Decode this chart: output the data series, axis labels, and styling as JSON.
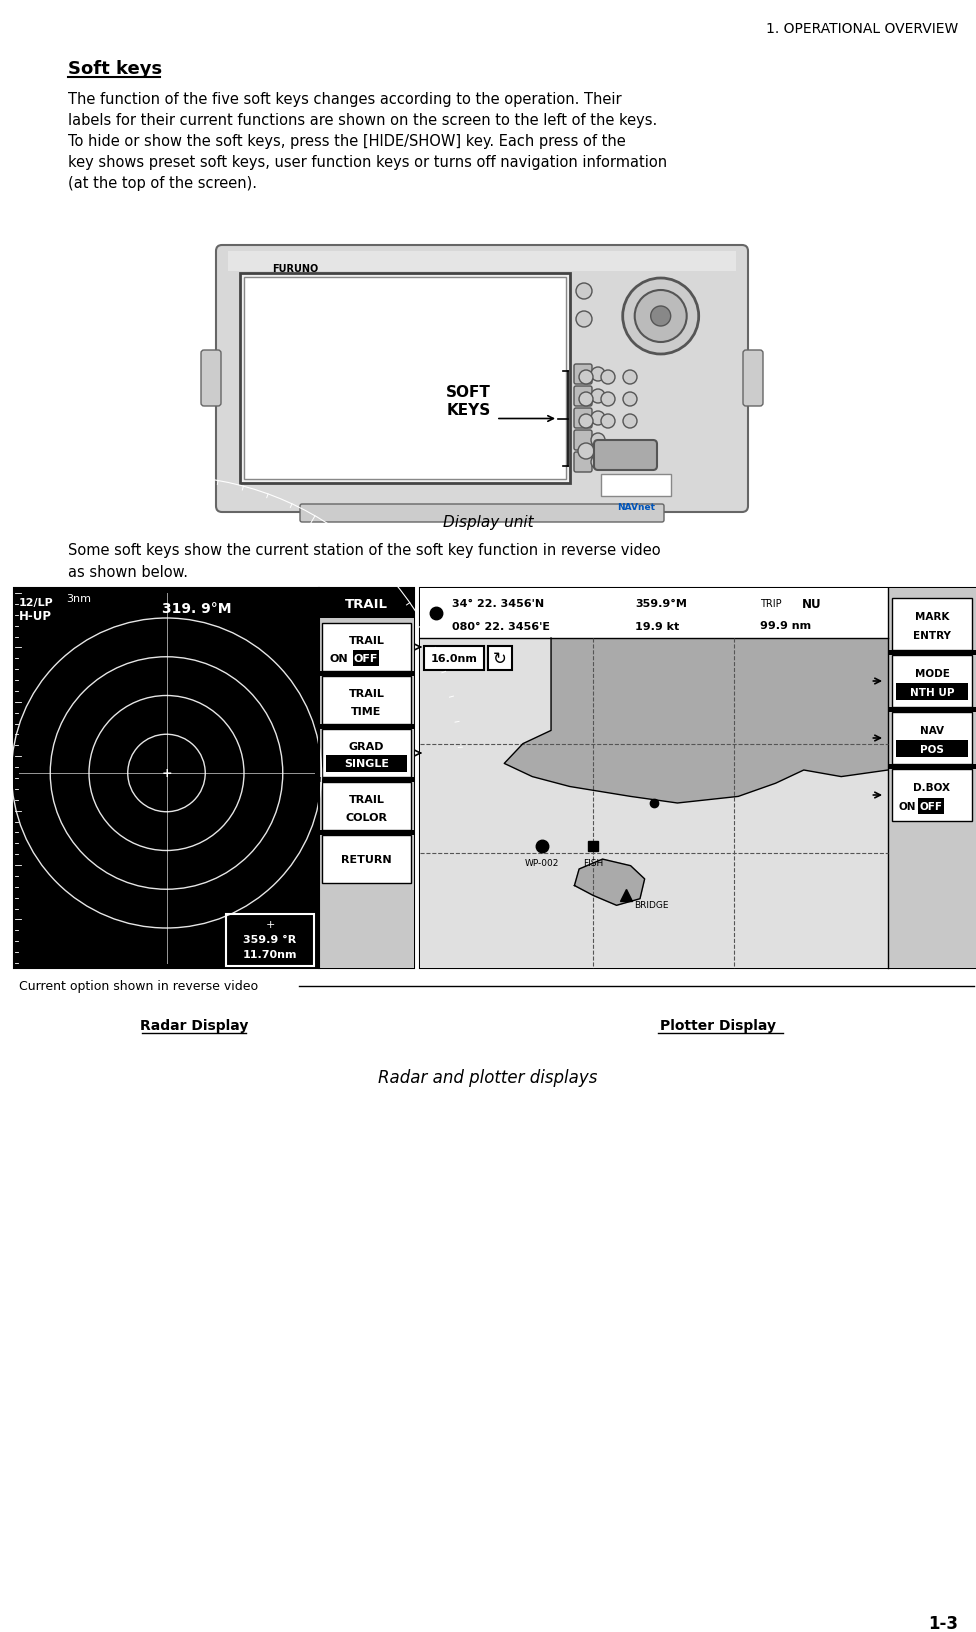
{
  "page_title": "1. OPERATIONAL OVERVIEW",
  "page_number": "1-3",
  "section_title": "Soft keys",
  "para1_lines": [
    "The function of the five soft keys changes according to the operation. Their",
    "labels for their current functions are shown on the screen to the left of the keys.",
    "To hide or show the soft keys, press the [HIDE/SHOW] key. Each press of the",
    "key shows preset soft keys, user function keys or turns off navigation information",
    "(at the top of the screen)."
  ],
  "softkeys_label": "SOFT\nKEYS",
  "display_unit_caption": "Display unit",
  "para2_lines": [
    "Some soft keys show the current station of the soft key function in reverse video",
    "as shown below."
  ],
  "radar_label": "Radar Display",
  "plotter_label": "Plotter Display",
  "figure_caption": "Radar and plotter displays",
  "current_option_label": "Current option shown in reverse video",
  "radar": {
    "range_label": "12/LP",
    "heading_label": "H-UP",
    "range_nm": "3nm",
    "bearing_label": "319. 9°M",
    "trail_header": "TRAIL",
    "sk_keys": [
      "TRAIL\nON OFF",
      "TRAIL\nTIME",
      "GRAD\nSINGLE",
      "TRAIL\nCOLOR",
      "RETURN"
    ],
    "sk_reverse": [
      true,
      false,
      true,
      false,
      false
    ],
    "sk_reverse_word": [
      "OFF",
      null,
      "SINGLE",
      null,
      null
    ],
    "bottom_plus": "+",
    "bottom_value": "359.9 °R",
    "bottom_dist": "11.70nm"
  },
  "plotter": {
    "lat": "34° 22. 3456'N",
    "lon": "080° 22. 3456'E",
    "bearing": "359.9°M",
    "speed": "19.9 kt",
    "trip_label": "TRIP",
    "nu_label": "NU",
    "nm_label": "99.9 nm",
    "range": "16.0nm",
    "sk_keys": [
      "MARK\nENTRY",
      "MODE\nNTH UP",
      "NAV\nPOS",
      "D.BOX\nON OFF"
    ],
    "sk_reverse": [
      false,
      true,
      true,
      true
    ],
    "sk_reverse_word": [
      null,
      "NTH UP",
      "POS",
      "OFF"
    ],
    "wp_label": "WP-002",
    "fish_label": "FISH",
    "bridge_label": "BRIDGE"
  },
  "bg_color": "#ffffff",
  "text_color": "#000000"
}
